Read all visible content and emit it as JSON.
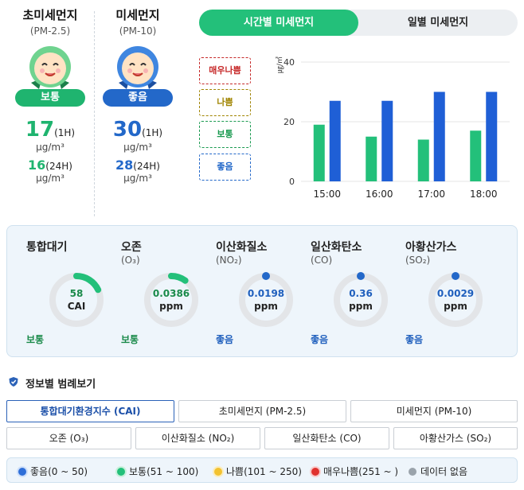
{
  "pm25": {
    "title": "초미세먼지",
    "sub": "(PM-2.5)",
    "status": "보통",
    "value_1h": "17",
    "per_1h": "(1H)",
    "unit": "μg/m³",
    "value_24h": "16",
    "per_24h": "(24H)",
    "color": "#1fb46f"
  },
  "pm10": {
    "title": "미세먼지",
    "sub": "(PM-10)",
    "status": "좋음",
    "value_1h": "30",
    "per_1h": "(1H)",
    "unit": "μg/m³",
    "value_24h": "28",
    "per_24h": "(24H)",
    "color": "#2368c9"
  },
  "tabs": {
    "hourly": "시간별 미세먼지",
    "daily": "일별 미세먼지"
  },
  "levels": [
    {
      "label": "매우나쁨",
      "color": "#c62828"
    },
    {
      "label": "나쁨",
      "color": "#a08400"
    },
    {
      "label": "보통",
      "color": "#1a9a50"
    },
    {
      "label": "좋음",
      "color": "#2368c9"
    }
  ],
  "chart_data": {
    "type": "bar",
    "categories": [
      "15:00",
      "16:00",
      "17:00",
      "18:00"
    ],
    "series": [
      {
        "values": [
          19,
          15,
          14,
          17
        ],
        "color": "#23c07a"
      },
      {
        "values": [
          27,
          27,
          30,
          30
        ],
        "color": "#1f5fd6"
      }
    ],
    "ylabel": "㎍/㎥",
    "ylim": [
      0,
      40
    ],
    "yticks": [
      0,
      20,
      40
    ]
  },
  "gauges": [
    {
      "name": "통합대기",
      "formula": "",
      "value": "58",
      "unit": "CAI",
      "status": "보통",
      "fraction": 0.18,
      "color": "#23c07a",
      "value_color": "#1a8a4a"
    },
    {
      "name": "오존",
      "formula": "(O₃)",
      "value": "0.0386",
      "unit": "ppm",
      "status": "보통",
      "fraction": 0.1,
      "color": "#23c07a",
      "value_color": "#1a8a4a"
    },
    {
      "name": "이산화질소",
      "formula": "(NO₂)",
      "value": "0.0198",
      "unit": "ppm",
      "status": "좋음",
      "fraction": 0.0,
      "color": "#2368c9",
      "value_color": "#1f5fbd"
    },
    {
      "name": "일산화탄소",
      "formula": "(CO)",
      "value": "0.36",
      "unit": "ppm",
      "status": "좋음",
      "fraction": 0.0,
      "color": "#2368c9",
      "value_color": "#1f5fbd"
    },
    {
      "name": "아황산가스",
      "formula": "(SO₂)",
      "value": "0.0029",
      "unit": "ppm",
      "status": "좋음",
      "fraction": 0.0,
      "color": "#2368c9",
      "value_color": "#1f5fbd"
    }
  ],
  "legend_section": {
    "title": "정보별 범례보기",
    "row1": [
      "통합대기환경지수 (CAI)",
      "초미세먼지 (PM-2.5)",
      "미세먼지 (PM-10)"
    ],
    "row2": [
      "오존 (O₃)",
      "이산화질소 (NO₂)",
      "일산화탄소 (CO)",
      "아황산가스 (SO₂)"
    ],
    "selected": "통합대기환경지수 (CAI)"
  },
  "range_legend": [
    {
      "label": "좋음(0 ~ 50)",
      "color": "#2f6fd8"
    },
    {
      "label": "보통(51 ~ 100)",
      "color": "#23c07a"
    },
    {
      "label": "나쁨(101 ~ 250)",
      "color": "#f2c230"
    },
    {
      "label": "매우나쁨(251 ~ )",
      "color": "#e0322f"
    },
    {
      "label": "데이터 없음",
      "color": "#9aa3ab"
    }
  ]
}
